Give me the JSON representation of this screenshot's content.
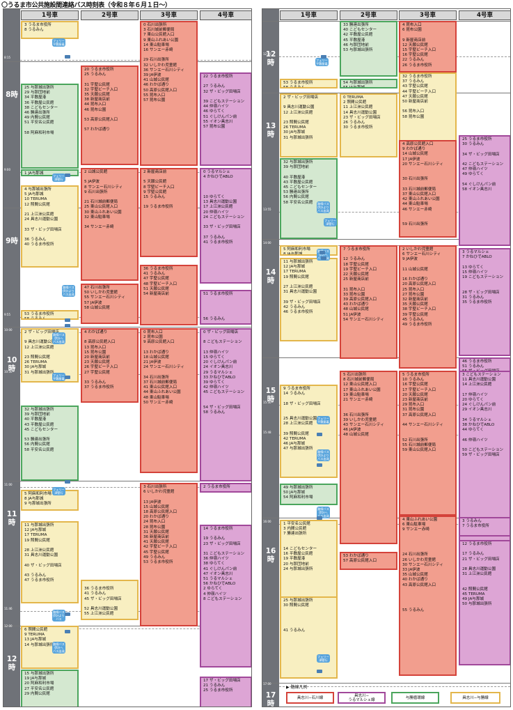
{
  "title": "〇うるま市公共施設間連絡バス時刻表（令和８年６月１日～）",
  "vehicles": [
    "1号車",
    "2号車",
    "3号車",
    "4号車"
  ],
  "left": {
    "hours": [
      "8",
      "9",
      "10",
      "11",
      "12"
    ],
    "times": [
      "8:15",
      "9:00",
      "9:55",
      "10:00",
      "10:30",
      "11:00",
      "11:46",
      "12:00"
    ],
    "blocks": [
      {
        "rows": [
          "3 うるま市役所",
          "8 うるみん",
          "",
          "",
          "",
          "",
          "23 JA与那城",
          "24 与那城出張所"
        ]
      },
      {
        "rows": [
          "25 与那城出張所",
          "29 与那団地前",
          "34 平敷屋港",
          "36 平敷屋公民館",
          "38 こどもセンター",
          "46 勝連出張所",
          "49 内間公民館",
          "51 平安名公民館",
          "",
          "58 阿麻和利市場"
        ]
      },
      {
        "rows": [
          "1 JA与那城",
          "3 与那城出張所"
        ]
      },
      {
        "rows": [
          "4 与那城出張所",
          "5 JA与那城",
          "10 TERUMA",
          "12 照間公民館",
          "",
          "21 上江洲公民館",
          "24 具志川運動公園",
          "",
          "33 ザ・ビッグ田場店",
          "",
          "36 うるみん",
          "40 うるま市役所"
        ]
      },
      {
        "rows": [
          "53 うるま市役所",
          "58 うるみん"
        ]
      },
      {
        "rows": [
          "2 ザ・ビッグ田場店",
          "",
          "9 具志川運動公園",
          "12 上江洲公民館",
          "",
          "23 照間公民館",
          "26 TERUMA",
          "30 JA与那城",
          "31 与那城出張所"
        ]
      },
      {
        "rows": [
          "32 与那城出張所",
          "39 与那団地前",
          "40 平敷屋港",
          "43 平敷屋公民館",
          "45 こどもセンター",
          "",
          "53 勝連出張所",
          "56 内間公民館",
          "58 平安名公民館"
        ]
      },
      {
        "rows": [
          "5 阿麻和利市場",
          "8 JA与那城",
          "9 与那城出張所"
        ]
      },
      {
        "rows": [
          "11 与那城出張所",
          "12 JA与那城",
          "17 TERUMA",
          "19 照間公民館",
          "",
          "28 上江洲公民館",
          "31 具志川運動公園",
          "",
          "40 ザ・ビッグ田場店",
          "",
          "43 うるみん",
          "47 うるま市役所"
        ]
      },
      {
        "rows": [
          "6 照間公民館",
          "9 TERUMA",
          "13 JA与那城",
          "14 与那城出張所"
        ]
      },
      {
        "rows": [
          "15 与那城出張所",
          "19 JA与那城",
          "20 阿麻和利市場",
          "27 平安名公民館",
          "29 内間公民館"
        ]
      },
      {
        "rows": [
          "20 うるま市役所",
          "25 うるみん",
          "",
          "31 宇堅公民館",
          "32 宇堅ビーチ入口",
          "35 天願公民館",
          "38 新屋商店前",
          "44 昆布入口",
          "46 昆布公園",
          "",
          "53 高原公民館入口",
          "",
          "57 わかば通り"
        ]
      },
      {
        "rows": [
          "2 山城公民館",
          "",
          "5 JA伊波",
          "8 サンエー石川シティ",
          "9 石川出張所",
          "",
          "21 石川城前郵便局",
          "25 東山公民館入口",
          "30 東山ふれあい公園",
          "32 東山駐車場",
          "",
          "34 サンエー赤崎"
        ]
      },
      {
        "rows": [
          "47 石川出張所",
          "50 いしかわ児童館",
          "55 サンエー石川シティ",
          "57 JA伊波",
          "58 山城公民館"
        ]
      },
      {
        "rows": [
          "4 わかば通り",
          "",
          "8 高原公民館入口",
          "13 昆布入口",
          "15 昆布公園",
          "20 新屋商店前",
          "23 天願公民館",
          "26 宇堅ビーチ入口",
          "27 宇堅公民館",
          "",
          "33 うるみん",
          "37 うるま市役所"
        ]
      },
      {
        "rows": [
          "",
          "36 うるま市役所",
          "41 うるみん",
          "45 ザ・ビッグ田場店",
          "",
          "52 具志川運動公園",
          "55 上江洲公民館"
        ]
      },
      {
        "rows": [
          "0 石川出張所",
          "3 石川城前郵便局",
          "7 東山公民館入口",
          "9 東山ふれあい公園",
          "14 東山駐車場",
          "16 サンエー赤崎",
          "",
          "29 石川出張所",
          "32 いしかわ児童館",
          "36 サンエー石川シティ",
          "39 JA伊波",
          "41 山城公民館",
          "46 わかば通り",
          "50 高原公民館入口",
          "55 昆布入口",
          "57 昆布公園"
        ]
      },
      {
        "rows": [
          "2 新屋商店前",
          "",
          "5 天願公民館",
          "8 宇堅ビーチ入口",
          "9 宇堅公民館",
          "15 うるみん",
          "",
          "19 うるま市役所"
        ]
      },
      {
        "rows": [
          "36 うるま市役所",
          "41 うるみん",
          "47 宇堅公民館",
          "48 宇堅ビーチ入口",
          "51 天願公民館",
          "54 新屋商店前"
        ]
      },
      {
        "rows": [
          "0 昆布入口",
          "2 昆布公園",
          "9 高原公民館入口",
          "",
          "13 わかば通り",
          "18 山城公民館",
          "21 JA伊波",
          "24 サンエー石川シティ",
          "",
          "34 石川出張所",
          "37 石川城前郵便局",
          "41 東山公民館入口",
          "44 東山ふれあい公園",
          "48 東山駐車場",
          "50 サンエー赤崎"
        ]
      },
      {
        "rows": [
          "3 石川出張所",
          "6 いしかわ児童館",
          "",
          "13 JA伊波",
          "15 山城公民館",
          "18 高原公民館入口",
          "20 わかば通り",
          "24 昆布入口",
          "28 昆布公園",
          "31 天願公民館",
          "36 新屋商店前",
          "41 天願公民館",
          "42 宇堅ビーチ入口",
          "45 宇堅公民館",
          "49 うるみん",
          "53 うるま市役所"
        ]
      },
      {
        "rows": [
          "22 うるま市役所",
          "",
          "27 うるみん",
          "32 ザ・ビッグ田場店",
          "",
          "39 こどもステーション",
          "44 仲嶺ハイツ",
          "46 ゆらてく",
          "51 ぐしけんパン前",
          "55 イオン具志川",
          "57 昆布公園"
        ]
      },
      {
        "rows": [
          "0 うるマルシェ",
          "4 かねひでABLO",
          "",
          "",
          "",
          "10 ゆらてく",
          "13 具志川運動公園",
          "17 上江洲公民館",
          "20 仲嶺ハイツ",
          "24 こどもステーション",
          "",
          "33 ザ・ビッグ田場店",
          "",
          "37 うるみん",
          "41 うるま市役所"
        ]
      },
      {
        "rows": [
          "51 うるま市役所",
          "",
          "",
          "",
          "",
          "56 うるみん"
        ]
      },
      {
        "rows": [
          "0 ザ・ビッグ田場店",
          "",
          "8 こどもステーション",
          "",
          "13 仲嶺ハイツ",
          "15 ゆらてく",
          "20 ぐしけんパン前",
          "24 イオン具志川",
          "29 うるマルシェ",
          "33 かねひでABLO",
          "39 ゆらてく",
          "42 仲嶺ハイツ",
          "45 こどもステーション",
          "",
          "",
          "54 ザ・ビッグ田場店",
          "58 うるみん"
        ]
      },
      {
        "rows": [
          "2 うるま市役所"
        ]
      },
      {
        "rows": [
          "14 うるま市役所",
          "",
          "19 うるみん",
          "23 ザ・ビッグ田場店",
          "",
          "31 こどもステーション",
          "36 仲嶺ハイツ",
          "38 ゆらてく",
          "41 ぐしけんパン前",
          "47 イオン具志川",
          "51 うるマルシェ",
          "56 かねひでABLO",
          "2 ゆらてく",
          "4 仲嶺ハイツ",
          "8 こどもステーション"
        ]
      },
      {
        "rows": [
          "17 ザ・ビッグ田場店",
          "21 うるみん",
          "25 うるま市役所"
        ]
      }
    ],
    "bubbles": [
      [
        "フェリー",
        "平敷屋着"
      ],
      [
        "フェリー",
        "津堅行"
      ],
      [
        "路線バス",
        "伊計より",
        "バス出発"
      ],
      [
        "路線バス",
        "伊計へ",
        "バス出発"
      ],
      [
        "フェリー",
        "平敷屋着"
      ],
      [
        "フェリー",
        "津堅行"
      ],
      [
        "路線バス",
        "伊計より",
        "バス"
      ],
      [
        "路線バス",
        "伊計へ",
        "バス出発"
      ]
    ]
  },
  "right": {
    "hours": [
      "12",
      "13",
      "14",
      "15",
      "16",
      "17"
    ],
    "times": [
      "12:30",
      "13:55",
      "14:00",
      "15:30",
      "15:48",
      "16:00",
      "17:00"
    ],
    "blocks": [
      {
        "rows": [
          "53 うるま市役所",
          "58 うるみん"
        ]
      },
      {
        "rows": [
          "2 ザ・ビッグ田場店",
          "",
          "9 具志川運動公園",
          "12 上江洲公民館",
          "",
          "23 照間公民館",
          "26 TERUMA",
          "30 JA与那城",
          "31 与那城出張所"
        ]
      },
      {
        "rows": [
          "32 与那城出張所",
          "39 与那団地前",
          "",
          "40 平敷屋港",
          "43 平敷屋公民館",
          "45 こどもセンター",
          "53 勝連出張所",
          "56 内間公民館",
          "58 平安名公民館"
        ]
      },
      {
        "rows": [
          "5 阿麻和利市場",
          "8 JA与那城",
          "9 与那城出張所"
        ]
      },
      {
        "rows": [
          "11 与那城出張所",
          "12 JA与那城",
          "17 TERUMA",
          "19 照間公民館",
          "",
          "27 上江洲公民館",
          "31 具志川運動公園",
          "",
          "39 ザ・ビッグ田場店",
          "42 うるみん",
          "46 うるま市役所"
        ]
      },
      {
        "rows": [
          "9 うるま市役所",
          "14 うるみん",
          "",
          "18 ザ・ビッグ田場店",
          "",
          "",
          "25 具志川運動公園",
          "28 上江洲公民館",
          "",
          "39 照間公民館",
          "42 TERUMA",
          "46 JA与那城",
          "47 与那城出張所"
        ]
      },
      {
        "rows": [
          "49 与那城出張所",
          "50 JA与那城",
          "54 阿麻和利市場"
        ]
      },
      {
        "rows": [
          "1 平安名公民館",
          "3 内間公民館",
          "7 勝連出張所",
          "",
          "",
          "14 こどもセンター",
          "16 平敷屋公民館",
          "19 平敷屋港",
          "20 与那団地前",
          "24 与那城出張所"
        ]
      },
      {
        "rows": [
          "25 与那城出張所",
          "30 照間公民館",
          "",
          "",
          "",
          "",
          "41 うるみん"
        ]
      },
      {
        "rows": [
          "33 勝連出張所",
          "40 こどもセンター",
          "42 平敷屋公民館",
          "45 平敷屋港",
          "46 与那団地前",
          "53 与那城出張所"
        ]
      },
      {
        "rows": [
          "54 与那城出張所",
          "55 JA与那城"
        ]
      },
      {
        "rows": [
          "0 TERUMA",
          "2 照間公民館",
          "11 上江洲公民館",
          "14 具志川運動公園",
          "23 ザ・ビッグ田場店",
          "26 うるみん",
          "30 うるま市役所"
        ]
      },
      {
        "rows": [
          "7 うるま市役所",
          "",
          "12 うるみん",
          "18 宇堅公民館",
          "19 宇堅ビーチ入口",
          "22 天願公民館",
          "25 新屋商店前",
          "",
          "31 昆布入口",
          "33 昆布公園",
          "39 高原公民館入口",
          "43 わかば通り",
          "48 山城公民館",
          "51 JA伊波",
          "54 サンエー石川シティ"
        ]
      },
      {
        "rows": [
          "5 石川出張所",
          "8 石川城前郵便局",
          "12 東山公民館入口",
          "17 東山ふれあい公園",
          "19 東山駐車場",
          "21 サンエー赤崎",
          "",
          "",
          "36 石川出張所",
          "39 いしかわ児童館",
          "43 サンエー石川シティ",
          "46 JA伊波",
          "48 山城公民館"
        ]
      },
      {
        "rows": [
          "53 わかば通り",
          "57 高原公民館入口"
        ]
      },
      {
        "rows": [
          "4 昆布入口",
          "6 昆布公園",
          "",
          "9 新屋商店前",
          "12 天願公民館",
          "15 宇堅ビーチ入口",
          "16 宇堅公民館",
          "22 うるみん",
          "26 うるま市役所"
        ]
      },
      {
        "rows": [
          "32 うるま市役所",
          "37 うるみん",
          "43 宇堅公民館",
          "44 宇堅ビーチ入口",
          "47 天願公民館",
          "50 新屋商店前",
          "",
          "56 昆布入口",
          "58 昆布公園"
        ]
      },
      {
        "rows": [
          "4 高原公民館入口",
          "9 わかば通り",
          "14 山城公民館",
          "17 JA伊波",
          "20 サンエー石川シティ",
          "",
          "",
          "30 石川出張所",
          "",
          "33 石川城前郵便局",
          "37 東山公民館入口",
          "42 東山ふれあい公園",
          "44 東山駐車場",
          "46 サンエー赤崎",
          "",
          "",
          "59 石川出張所"
        ]
      },
      {
        "rows": [
          "2 いしかわ児童館",
          "6 サンエー石川シティ",
          "9 JA伊波",
          "",
          "11 山城公民館",
          "",
          "16 わかば通り",
          "20 高原公民館入口",
          "25 昆布入口",
          "27 昆布公園",
          "32 新屋商店前",
          "35 天願公民館",
          "38 宇堅ビーチ入口",
          "39 宇堅公民館",
          "45 うるみん",
          "49 うるま市役所"
        ]
      },
      {
        "rows": [
          "5 うるま市役所",
          "10 うるみん",
          "16 宇堅公民館",
          "17 宇堅ビーチ入口",
          "20 天願公民館",
          "23 新屋商店前",
          "29 昆布入口",
          "31 昆布公園",
          "37 高原公民館入口",
          "",
          "44 サンエー石川シティ",
          "",
          "",
          "52 石川出張所",
          "55 石川城前郵便局",
          "59 東山公民館入口"
        ]
      },
      {
        "rows": [
          "4 東山ふれあい公園",
          "6 東山駐車場",
          "9 サンエー赤崎",
          "",
          "",
          "",
          "",
          "24 石川出張所",
          "26 いしかわ児童館",
          "30 サンエー石川シティ",
          "33 JA伊波",
          "35 山城公民館",
          "40 わかば通り",
          "43 高原公民館入口",
          "",
          "",
          "",
          "",
          "55 うるみん"
        ]
      },
      {
        "rows": [
          "25 うるま市役所",
          "30 うるみん",
          "",
          "34 ザ・ビッグ田場店",
          "",
          "42 こどもステーション",
          "47 仲嶺ハイツ",
          "49 ゆらてく",
          "",
          "54 ぐしけんパン前",
          "58 イオン具志川"
        ]
      },
      {
        "rows": [
          "3 うるマルシェ",
          "7 かねひでABLO",
          "",
          "13 ゆらてく",
          "15 仲嶺ハイツ",
          "19 こどもステーション",
          "",
          "",
          "28 ザ・ビッグ田場店",
          "31 うるみん",
          "35 うるま市役所"
        ]
      },
      {
        "rows": [
          "46 うるま市役所",
          "51 うるみん",
          "55 ザ・ビッグ田場店"
        ]
      },
      {
        "rows": [
          "3 こどもステーション",
          "11 具志川運動公園",
          "14 上江洲公民館",
          "",
          "17 仲嶺ハイツ",
          "20 ゆらてく",
          "24 ぐしけんパン前",
          "29 イオン具志川",
          "",
          "34 うるマルシェ",
          "38 かねひでABLO",
          "44 ゆらてく",
          "",
          "46 仲嶺ハイツ",
          "",
          "50 こどもステーション",
          "59 ザ・ビッグ田場店"
        ]
      },
      {
        "rows": [
          "3 うるみん",
          "7 うるま市役所"
        ]
      },
      {
        "rows": [
          "12 うるま市役所",
          "",
          "17 うるみん",
          "21 ザ・ビッグ田場店",
          "",
          "28 具志川運動公園",
          "31 上江洲公民館",
          "",
          "",
          "42 照間公民館",
          "45 TERUMA",
          "49 JA与那城",
          "50 与那城出張所"
        ]
      }
    ],
    "bubbles": [
      [
        "フェリー",
        "平敷屋着"
      ],
      [
        "路線バス",
        "伊計より",
        "バス出発"
      ],
      [
        "フェリー",
        "津堅行"
      ],
      [
        "路線バス",
        "伊計へ",
        "バス出発"
      ],
      [
        "フェリー",
        "平敷屋着"
      ],
      [
        "路線バス",
        "伊計より",
        "バス出発"
      ],
      [
        "路線バス",
        "伊計へ",
        "バス出発"
      ],
      [
        "フェリー",
        "津堅行"
      ]
    ],
    "legend": {
      "title": "▶ 路線凡例",
      "items": [
        "具志川−石川線",
        "具志川−\nうるマルシェ線",
        "与勝循環線",
        "具志川−与勝線"
      ]
    }
  }
}
